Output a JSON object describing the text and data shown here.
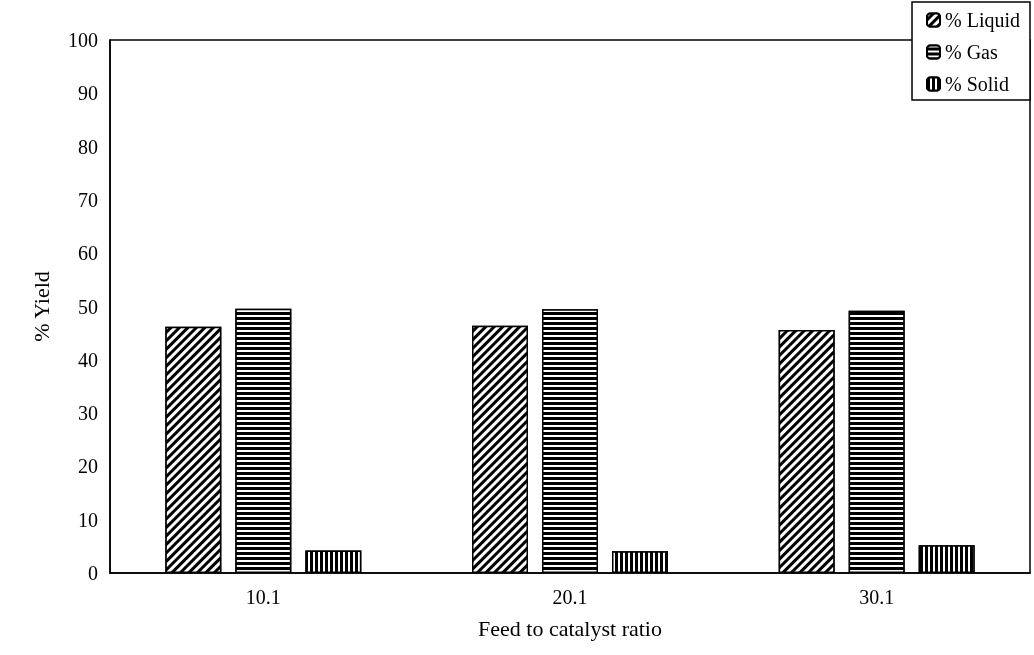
{
  "chart_data": {
    "type": "bar",
    "xlabel": "Feed to catalyst ratio",
    "ylabel": "% Yield",
    "categories": [
      "10.1",
      "20.1",
      "30.1"
    ],
    "series": [
      {
        "name": "% Liquid",
        "color": "#000000",
        "values": [
          46.2,
          46.4,
          45.6
        ]
      },
      {
        "name": "% Gas",
        "color": "#000000",
        "values": [
          49.6,
          49.5,
          49.2
        ]
      },
      {
        "name": "% Solid",
        "color": "#000000",
        "values": [
          4.2,
          4.1,
          5.2
        ]
      }
    ],
    "ylim": [
      0,
      100
    ],
    "yticks": [
      0,
      10,
      20,
      30,
      40,
      50,
      60,
      70,
      80,
      90,
      100
    ],
    "grid": false,
    "legend": "top right"
  }
}
